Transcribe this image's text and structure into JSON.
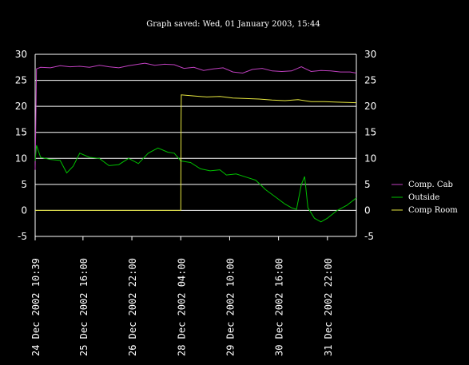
{
  "chart_data": {
    "type": "line",
    "title": "Graph saved: Wed, 01 January 2003, 15:44",
    "ylim": [
      -5,
      30
    ],
    "yticks": [
      -5,
      0,
      5,
      10,
      15,
      20,
      25,
      30
    ],
    "grid": true,
    "legend_position": "right",
    "x_range": [
      "24 Dec 2002 10:39",
      "01 Jan 2003 15:44"
    ],
    "xtick_labels": [
      "24 Dec 2002 10:39",
      "25 Dec 2002 16:00",
      "26 Dec 2002 22:00",
      "28 Dec 2002 04:00",
      "29 Dec 2002 10:00",
      "30 Dec 2002 16:00",
      "31 Dec 2002 22:00"
    ],
    "series": [
      {
        "name": "Comp. Cab",
        "color": "#c040c0",
        "points": [
          [
            "24 Dec 2002 10:39",
            7.8
          ],
          [
            "24 Dec 2002 11:30",
            27.2
          ],
          [
            "24 Dec 2002 14:00",
            27.5
          ],
          [
            "24 Dec 2002 20:00",
            27.4
          ],
          [
            "25 Dec 2002 02:00",
            27.8
          ],
          [
            "25 Dec 2002 08:00",
            27.6
          ],
          [
            "25 Dec 2002 14:00",
            27.7
          ],
          [
            "25 Dec 2002 20:00",
            27.5
          ],
          [
            "26 Dec 2002 02:00",
            27.9
          ],
          [
            "26 Dec 2002 08:00",
            27.6
          ],
          [
            "26 Dec 2002 14:00",
            27.4
          ],
          [
            "26 Dec 2002 20:00",
            27.8
          ],
          [
            "27 Dec 2002 02:00",
            28.1
          ],
          [
            "27 Dec 2002 06:00",
            28.3
          ],
          [
            "27 Dec 2002 12:00",
            27.9
          ],
          [
            "27 Dec 2002 18:00",
            28.1
          ],
          [
            "28 Dec 2002 00:00",
            28.0
          ],
          [
            "28 Dec 2002 06:00",
            27.3
          ],
          [
            "28 Dec 2002 12:00",
            27.5
          ],
          [
            "28 Dec 2002 18:00",
            26.9
          ],
          [
            "29 Dec 2002 00:00",
            27.2
          ],
          [
            "29 Dec 2002 06:00",
            27.4
          ],
          [
            "29 Dec 2002 12:00",
            26.6
          ],
          [
            "29 Dec 2002 18:00",
            26.4
          ],
          [
            "30 Dec 2002 00:00",
            27.1
          ],
          [
            "30 Dec 2002 06:00",
            27.3
          ],
          [
            "30 Dec 2002 12:00",
            26.8
          ],
          [
            "30 Dec 2002 18:00",
            26.7
          ],
          [
            "31 Dec 2002 00:00",
            26.8
          ],
          [
            "31 Dec 2002 06:00",
            27.6
          ],
          [
            "31 Dec 2002 12:00",
            26.7
          ],
          [
            "31 Dec 2002 18:00",
            26.9
          ],
          [
            "01 Jan 2003 00:00",
            26.8
          ],
          [
            "01 Jan 2003 06:00",
            26.6
          ],
          [
            "01 Jan 2003 12:00",
            26.6
          ],
          [
            "01 Jan 2003 15:44",
            26.4
          ]
        ]
      },
      {
        "name": "Outside",
        "color": "#00c000",
        "points": [
          [
            "24 Dec 2002 10:39",
            9.5
          ],
          [
            "24 Dec 2002 11:30",
            12.5
          ],
          [
            "24 Dec 2002 14:00",
            10.2
          ],
          [
            "24 Dec 2002 20:00",
            9.8
          ],
          [
            "25 Dec 2002 02:00",
            9.6
          ],
          [
            "25 Dec 2002 06:00",
            7.2
          ],
          [
            "25 Dec 2002 10:00",
            8.5
          ],
          [
            "25 Dec 2002 14:00",
            11.0
          ],
          [
            "25 Dec 2002 20:00",
            10.2
          ],
          [
            "26 Dec 2002 02:00",
            10.0
          ],
          [
            "26 Dec 2002 08:00",
            8.6
          ],
          [
            "26 Dec 2002 14:00",
            8.8
          ],
          [
            "26 Dec 2002 20:00",
            10.0
          ],
          [
            "27 Dec 2002 02:00",
            9.0
          ],
          [
            "27 Dec 2002 08:00",
            11.0
          ],
          [
            "27 Dec 2002 14:00",
            12.0
          ],
          [
            "27 Dec 2002 20:00",
            11.2
          ],
          [
            "28 Dec 2002 00:00",
            11.0
          ],
          [
            "28 Dec 2002 04:00",
            9.5
          ],
          [
            "28 Dec 2002 10:00",
            9.2
          ],
          [
            "28 Dec 2002 16:00",
            8.0
          ],
          [
            "28 Dec 2002 22:00",
            7.6
          ],
          [
            "29 Dec 2002 04:00",
            7.8
          ],
          [
            "29 Dec 2002 08:00",
            6.8
          ],
          [
            "29 Dec 2002 14:00",
            7.0
          ],
          [
            "29 Dec 2002 20:00",
            6.4
          ],
          [
            "30 Dec 2002 02:00",
            5.8
          ],
          [
            "30 Dec 2002 08:00",
            4.0
          ],
          [
            "30 Dec 2002 14:00",
            2.6
          ],
          [
            "30 Dec 2002 20:00",
            1.2
          ],
          [
            "31 Dec 2002 00:00",
            0.5
          ],
          [
            "31 Dec 2002 03:00",
            0.2
          ],
          [
            "31 Dec 2002 06:00",
            5.0
          ],
          [
            "31 Dec 2002 08:00",
            6.5
          ],
          [
            "31 Dec 2002 10:00",
            0.5
          ],
          [
            "31 Dec 2002 14:00",
            -1.5
          ],
          [
            "31 Dec 2002 18:00",
            -2.2
          ],
          [
            "31 Dec 2002 22:00",
            -1.5
          ],
          [
            "01 Jan 2003 04:00",
            0.0
          ],
          [
            "01 Jan 2003 10:00",
            1.0
          ],
          [
            "01 Jan 2003 15:44",
            2.4
          ]
        ]
      },
      {
        "name": "Comp Room",
        "color": "#e8e840",
        "points": [
          [
            "24 Dec 2002 10:39",
            0.0
          ],
          [
            "28 Dec 2002 04:00",
            0.0
          ],
          [
            "28 Dec 2002 04:10",
            16.6
          ],
          [
            "28 Dec 2002 04:20",
            22.2
          ],
          [
            "28 Dec 2002 12:00",
            22.0
          ],
          [
            "28 Dec 2002 20:00",
            21.8
          ],
          [
            "29 Dec 2002 04:00",
            21.9
          ],
          [
            "29 Dec 2002 12:00",
            21.6
          ],
          [
            "29 Dec 2002 20:00",
            21.5
          ],
          [
            "30 Dec 2002 04:00",
            21.4
          ],
          [
            "30 Dec 2002 12:00",
            21.2
          ],
          [
            "30 Dec 2002 20:00",
            21.1
          ],
          [
            "31 Dec 2002 04:00",
            21.3
          ],
          [
            "31 Dec 2002 12:00",
            20.9
          ],
          [
            "31 Dec 2002 20:00",
            20.9
          ],
          [
            "01 Jan 2003 04:00",
            20.8
          ],
          [
            "01 Jan 2003 15:44",
            20.7
          ]
        ]
      }
    ]
  }
}
